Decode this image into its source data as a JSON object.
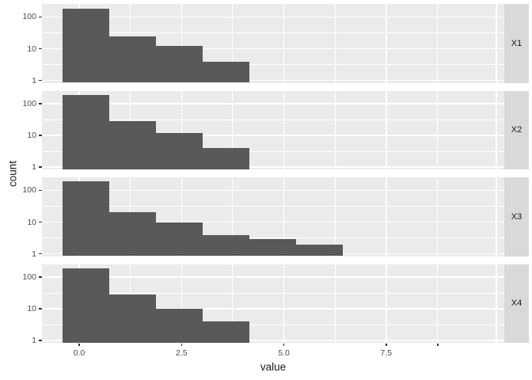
{
  "chart_data": {
    "type": "bar",
    "subtype": "faceted-histogram-log-y",
    "title": "",
    "xlabel": "value",
    "ylabel": "count",
    "legend": "none",
    "grid": "on",
    "facet_strip_position": "right",
    "facet_labels": [
      "X1",
      "X2",
      "X3",
      "X4"
    ],
    "bins": {
      "start": -0.41,
      "width": 1.143
    },
    "series": [
      {
        "name": "X1",
        "counts": [
          185,
          24,
          12,
          4
        ]
      },
      {
        "name": "X2",
        "counts": [
          185,
          29,
          12,
          4
        ]
      },
      {
        "name": "X3",
        "counts": [
          195,
          21,
          10,
          4,
          3,
          2
        ]
      },
      {
        "name": "X4",
        "counts": [
          190,
          28,
          10,
          4
        ]
      }
    ],
    "x_axis": {
      "tick_values": [
        0,
        2.5,
        5,
        7.5
      ],
      "tick_labels": [
        "0.0",
        "2.5",
        "5.0",
        "7.5"
      ],
      "unlabeled_tick_values": [
        8.76
      ],
      "major_gridlines": [
        0,
        2.5,
        5,
        7.5,
        10.19
      ],
      "minor_gridlines": [
        1.25,
        3.75,
        6.25,
        8.75
      ],
      "domain": [
        -0.908,
        10.384
      ]
    },
    "y_axis": {
      "scale": "log10",
      "tick_values": [
        100,
        10,
        1
      ],
      "tick_labels": [
        "100",
        "10",
        "1"
      ],
      "minor_gridline_values": [
        31.62,
        3.162
      ],
      "log_domain": [
        -0.07,
        2.41
      ]
    }
  },
  "colors": {
    "bar_fill": "#595959",
    "panel_bg": "#EBEBEB",
    "strip_bg": "#D9D9D9",
    "gridline": "#FFFFFF",
    "tick_label": "#4D4D4D",
    "axis_title": "#1A1A1A",
    "strip_text": "#1A1A1A",
    "tick_mark": "#333333"
  }
}
